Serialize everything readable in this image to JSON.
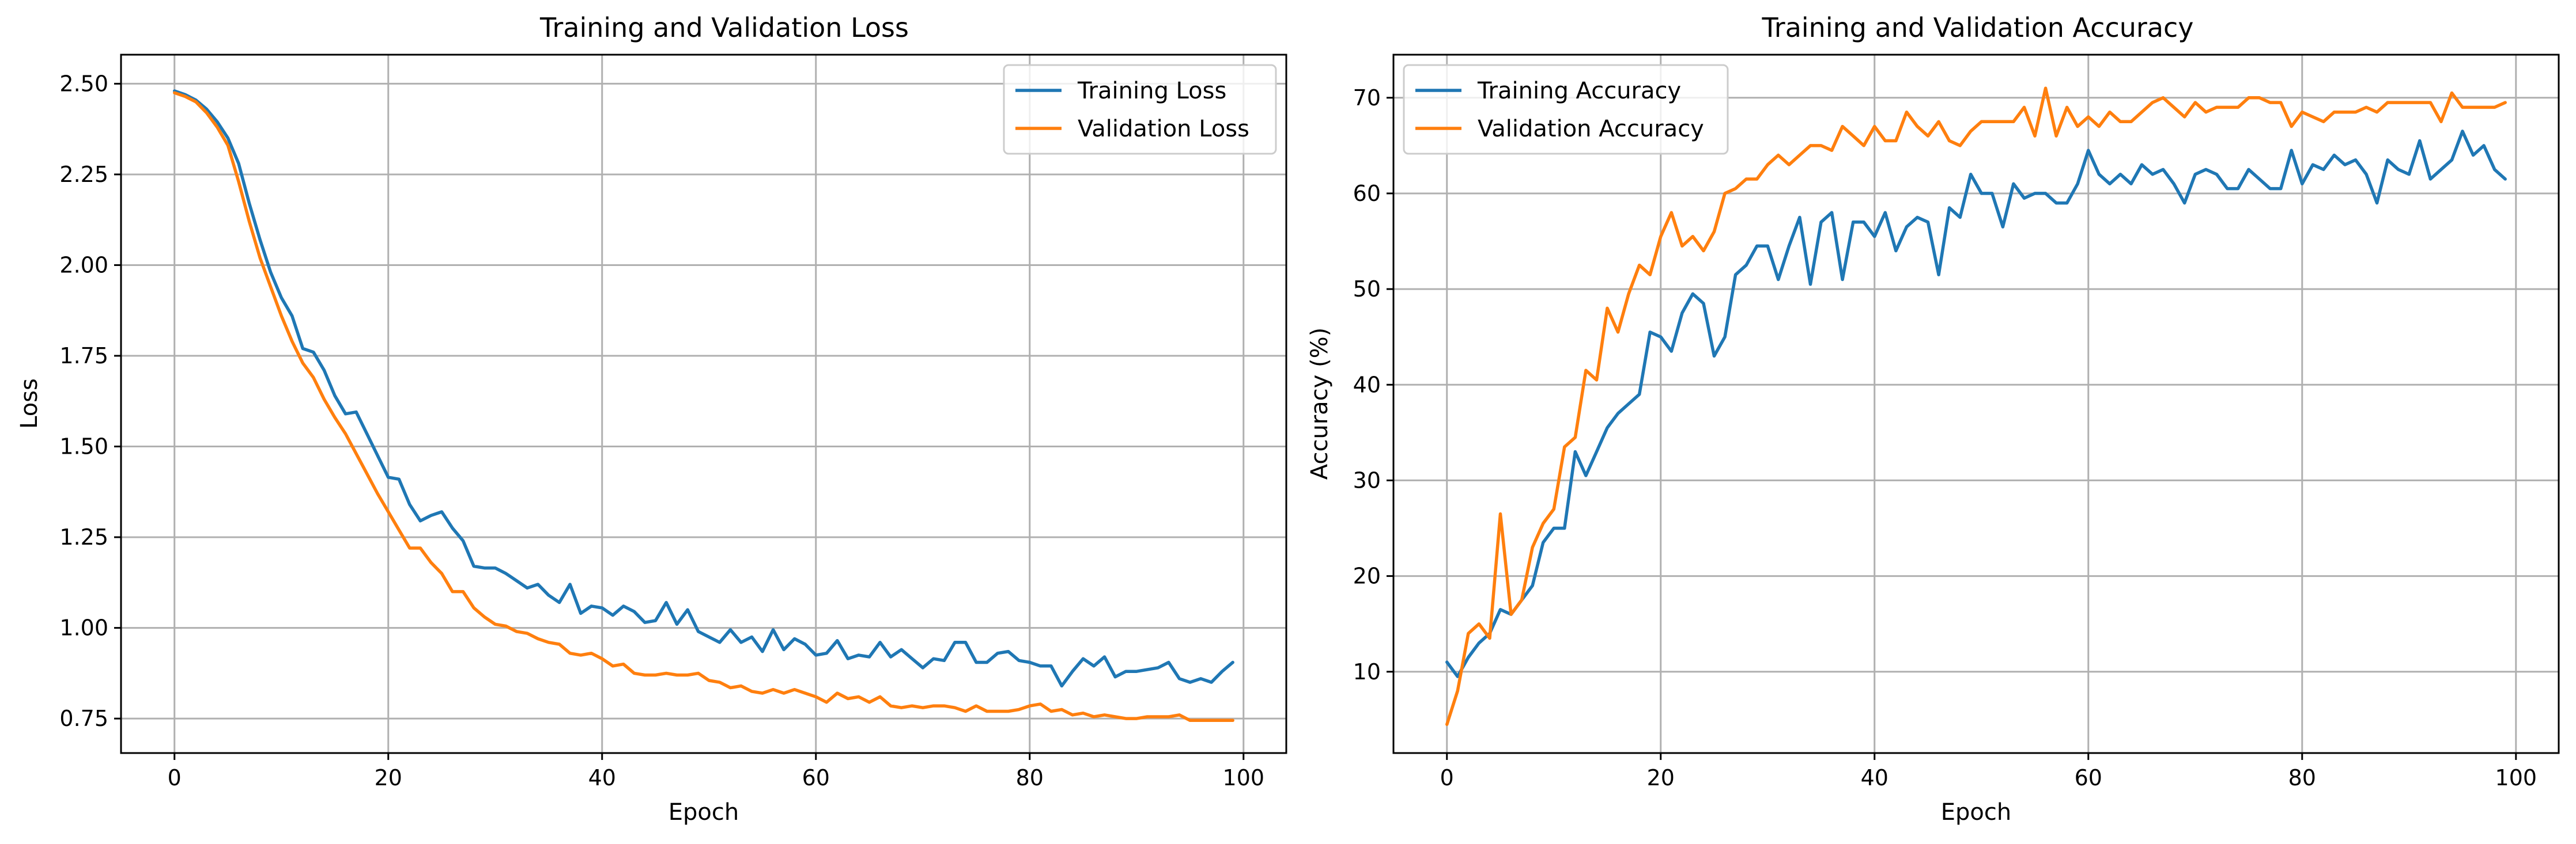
{
  "chart_data": [
    {
      "type": "line",
      "title": "Training and Validation Loss",
      "xlabel": "Epoch",
      "ylabel": "Loss",
      "xlim": [
        -5,
        104
      ],
      "ylim": [
        0.655,
        2.58
      ],
      "xticks": [
        0,
        20,
        40,
        60,
        80,
        100
      ],
      "yticks": [
        0.75,
        1.0,
        1.25,
        1.5,
        1.75,
        2.0,
        2.25,
        2.5
      ],
      "ytick_labels": [
        "0.75",
        "1.00",
        "1.25",
        "1.50",
        "1.75",
        "2.00",
        "2.25",
        "2.50"
      ],
      "grid": true,
      "legend_position": "upper right",
      "series": [
        {
          "name": "Training Loss",
          "color": "#1f77b4",
          "values": [
            2.48,
            2.47,
            2.455,
            2.43,
            2.395,
            2.35,
            2.28,
            2.17,
            2.07,
            1.98,
            1.91,
            1.86,
            1.77,
            1.76,
            1.71,
            1.64,
            1.59,
            1.595,
            1.535,
            1.475,
            1.415,
            1.41,
            1.34,
            1.295,
            1.31,
            1.32,
            1.275,
            1.24,
            1.17,
            1.165,
            1.165,
            1.15,
            1.13,
            1.11,
            1.12,
            1.09,
            1.07,
            1.12,
            1.04,
            1.06,
            1.055,
            1.035,
            1.06,
            1.045,
            1.015,
            1.02,
            1.07,
            1.01,
            1.05,
            0.99,
            0.975,
            0.96,
            0.995,
            0.96,
            0.975,
            0.935,
            0.995,
            0.94,
            0.97,
            0.955,
            0.925,
            0.93,
            0.965,
            0.915,
            0.925,
            0.92,
            0.96,
            0.92,
            0.94,
            0.915,
            0.89,
            0.915,
            0.91,
            0.96,
            0.96,
            0.905,
            0.905,
            0.93,
            0.935,
            0.91,
            0.905,
            0.895,
            0.895,
            0.84,
            0.88,
            0.915,
            0.895,
            0.92,
            0.865,
            0.88,
            0.88,
            0.885,
            0.89,
            0.905,
            0.86,
            0.85,
            0.86,
            0.85,
            0.88,
            0.905
          ]
        },
        {
          "name": "Validation Loss",
          "color": "#ff7f0e",
          "values": [
            2.475,
            2.465,
            2.45,
            2.42,
            2.38,
            2.33,
            2.23,
            2.12,
            2.02,
            1.94,
            1.86,
            1.79,
            1.73,
            1.69,
            1.63,
            1.58,
            1.535,
            1.48,
            1.425,
            1.37,
            1.32,
            1.27,
            1.22,
            1.22,
            1.18,
            1.15,
            1.1,
            1.1,
            1.055,
            1.03,
            1.01,
            1.005,
            0.99,
            0.985,
            0.97,
            0.96,
            0.955,
            0.93,
            0.925,
            0.93,
            0.915,
            0.895,
            0.9,
            0.875,
            0.87,
            0.87,
            0.875,
            0.87,
            0.87,
            0.875,
            0.855,
            0.85,
            0.835,
            0.84,
            0.825,
            0.82,
            0.83,
            0.82,
            0.83,
            0.82,
            0.81,
            0.795,
            0.82,
            0.805,
            0.81,
            0.795,
            0.81,
            0.785,
            0.78,
            0.785,
            0.78,
            0.785,
            0.785,
            0.78,
            0.77,
            0.785,
            0.77,
            0.77,
            0.77,
            0.775,
            0.785,
            0.79,
            0.77,
            0.775,
            0.76,
            0.765,
            0.755,
            0.76,
            0.755,
            0.75,
            0.75,
            0.755,
            0.755,
            0.755,
            0.76,
            0.745,
            0.745,
            0.745,
            0.745,
            0.745
          ]
        }
      ]
    },
    {
      "type": "line",
      "title": "Training and Validation Accuracy",
      "xlabel": "Epoch",
      "ylabel": "Accuracy (%)",
      "xlim": [
        -5,
        104
      ],
      "ylim": [
        1.5,
        74.5
      ],
      "xticks": [
        0,
        20,
        40,
        60,
        80,
        100
      ],
      "yticks": [
        10,
        20,
        30,
        40,
        50,
        60,
        70
      ],
      "ytick_labels": [
        "10",
        "20",
        "30",
        "40",
        "50",
        "60",
        "70"
      ],
      "grid": true,
      "legend_position": "upper left",
      "series": [
        {
          "name": "Training Accuracy",
          "color": "#1f77b4",
          "values": [
            11,
            9.5,
            11.5,
            13,
            14,
            16.5,
            16,
            17.5,
            19,
            23.5,
            25,
            25,
            33,
            30.5,
            33,
            35.5,
            37,
            38,
            39,
            45.5,
            45,
            43.5,
            47.5,
            49.5,
            48.5,
            43,
            45,
            51.5,
            52.5,
            54.5,
            54.5,
            51,
            54.5,
            57.5,
            50.5,
            57,
            58,
            51,
            57,
            57,
            55.5,
            58,
            54,
            56.5,
            57.5,
            57,
            51.5,
            58.5,
            57.5,
            62,
            60,
            60,
            56.5,
            61,
            59.5,
            60,
            60,
            59,
            59,
            61,
            64.5,
            62,
            61,
            62,
            61,
            63,
            62,
            62.5,
            61,
            59,
            62,
            62.5,
            62,
            60.5,
            60.5,
            62.5,
            61.5,
            60.5,
            60.5,
            64.5,
            61,
            63,
            62.5,
            64,
            63,
            63.5,
            62,
            59,
            63.5,
            62.5,
            62,
            65.5,
            61.5,
            62.5,
            63.5,
            66.5,
            64,
            65,
            62.5,
            61.5
          ]
        },
        {
          "name": "Validation Accuracy",
          "color": "#ff7f0e",
          "values": [
            4.5,
            8,
            14,
            15,
            13.5,
            26.5,
            16,
            17.5,
            23,
            25.5,
            27,
            33.5,
            34.5,
            41.5,
            40.5,
            48,
            45.5,
            49.5,
            52.5,
            51.5,
            55.5,
            58,
            54.5,
            55.5,
            54,
            56,
            60,
            60.5,
            61.5,
            61.5,
            63,
            64,
            63,
            64,
            65,
            65,
            64.5,
            67,
            66,
            65,
            67,
            65.5,
            65.5,
            68.5,
            67,
            66,
            67.5,
            65.5,
            65,
            66.5,
            67.5,
            67.5,
            67.5,
            67.5,
            69,
            66,
            71,
            66,
            69,
            67,
            68,
            67,
            68.5,
            67.5,
            67.5,
            68.5,
            69.5,
            70,
            69,
            68,
            69.5,
            68.5,
            69,
            69,
            69,
            70,
            70,
            69.5,
            69.5,
            67,
            68.5,
            68,
            67.5,
            68.5,
            68.5,
            68.5,
            69,
            68.5,
            69.5,
            69.5,
            69.5,
            69.5,
            69.5,
            67.5,
            70.5,
            69,
            69,
            69,
            69,
            69.5
          ]
        }
      ]
    }
  ]
}
